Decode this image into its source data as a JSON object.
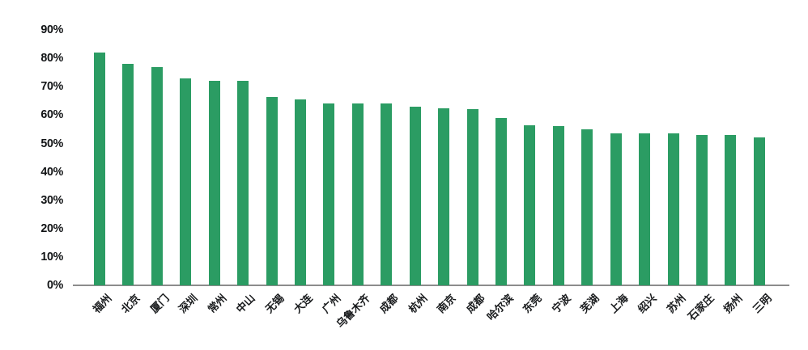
{
  "chart_data": {
    "type": "bar",
    "title": "",
    "xlabel": "",
    "ylabel": "",
    "categories": [
      "福州",
      "北京",
      "厦门",
      "深圳",
      "常州",
      "中山",
      "无锡",
      "大连",
      "广州",
      "乌鲁木齐",
      "成都",
      "杭州",
      "南京",
      "成都",
      "哈尔滨",
      "东莞",
      "宁波",
      "芜湖",
      "上海",
      "绍兴",
      "苏州",
      "石家庄",
      "扬州",
      "三明"
    ],
    "values": [
      82,
      78,
      77,
      73,
      72,
      72,
      66.5,
      65.5,
      64,
      64,
      64,
      63,
      62.5,
      62,
      59,
      56.5,
      56,
      55,
      53.5,
      53.5,
      53.5,
      53,
      53,
      52
    ],
    "value_unit": "%",
    "ylim": [
      0,
      90
    ],
    "ytick_step": 10,
    "yticks": [
      "0%",
      "10%",
      "20%",
      "30%",
      "40%",
      "50%",
      "60%",
      "70%",
      "80%",
      "90%"
    ],
    "grid": false,
    "legend_position": "none",
    "bar_color": "#2b9c63",
    "axis_line_color": "#8c8c8c",
    "tick_label_color": "#111315"
  }
}
